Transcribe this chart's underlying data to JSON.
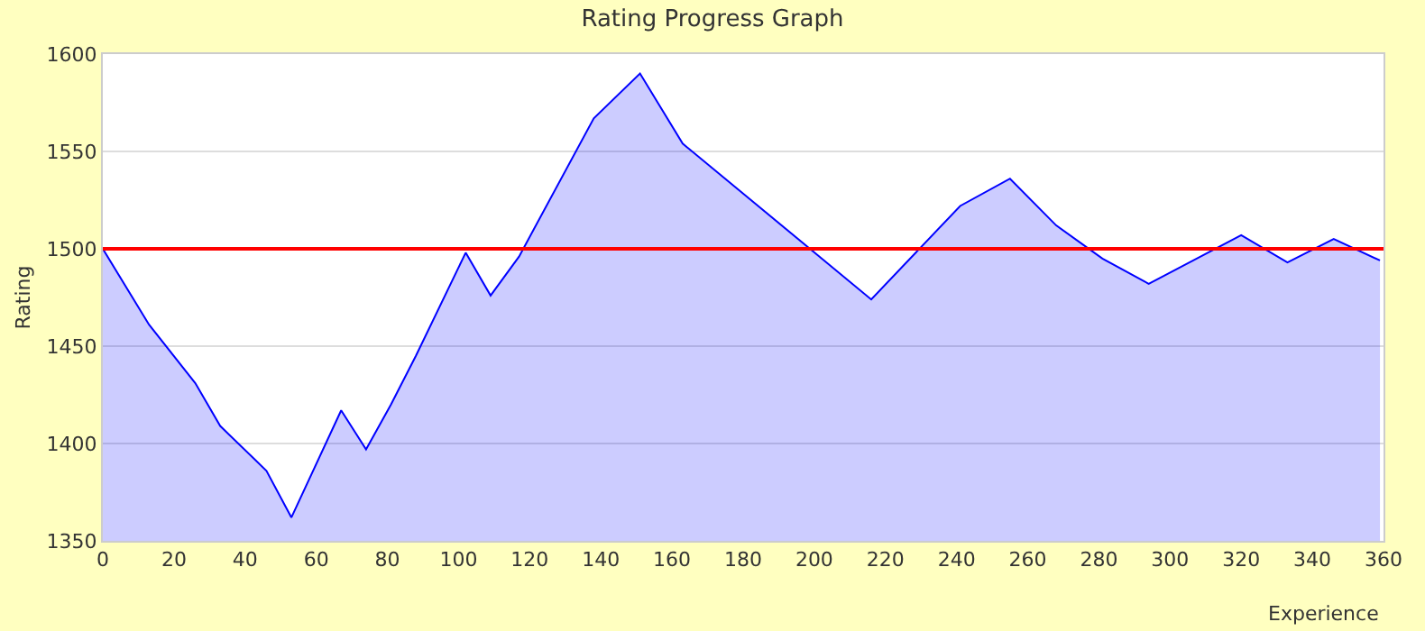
{
  "chart_data": {
    "type": "area",
    "title": "Rating Progress Graph",
    "xlabel": "Experience",
    "ylabel": "Rating",
    "x": [
      0,
      13,
      26,
      33,
      46,
      53,
      67,
      74,
      81,
      88,
      102,
      109,
      117,
      138,
      151,
      163,
      216,
      241,
      255,
      268,
      281,
      294,
      320,
      333,
      346,
      359
    ],
    "series": [
      {
        "color": "#0000ff",
        "values": [
          1500,
          1461,
          1431,
          1409,
          1386,
          1362,
          1417,
          1397,
          1420,
          1445,
          1498,
          1476,
          1496,
          1567,
          1590,
          1554,
          1474,
          1522,
          1536,
          1512,
          1495,
          1482,
          1507,
          1493,
          1505,
          1494
        ]
      }
    ],
    "xlim": [
      0,
      360
    ],
    "xticks": [
      0,
      20,
      40,
      60,
      80,
      100,
      120,
      140,
      160,
      180,
      200,
      220,
      240,
      260,
      280,
      300,
      320,
      340,
      360
    ],
    "ylim": [
      1350,
      1600
    ],
    "yticks": [
      1350,
      1400,
      1450,
      1500,
      1550,
      1600
    ],
    "ref_lines": [
      {
        "axis": "y",
        "value": 1500,
        "color": "#ff0000"
      }
    ],
    "grid": "y",
    "marker": "none",
    "line_style": "solid"
  }
}
